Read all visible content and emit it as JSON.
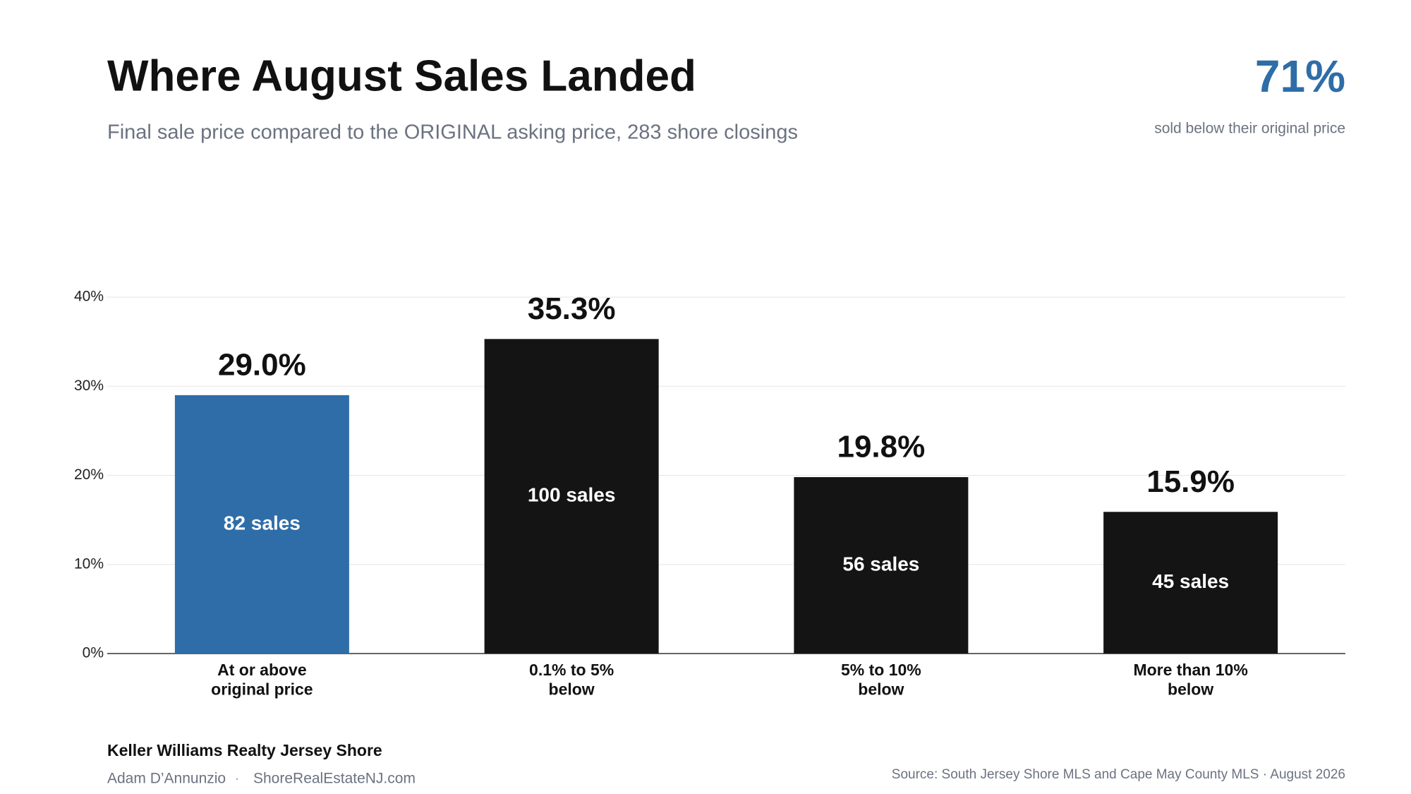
{
  "chart_data": {
    "type": "bar",
    "title": "Where August Sales Landed",
    "subtitle": "Final sale price compared to the ORIGINAL asking price, 283 shore closings",
    "highlight": {
      "value_label": "71%",
      "caption": "sold below their original price"
    },
    "categories": [
      "At or above\noriginal price",
      "0.1% to 5%\nbelow",
      "5% to 10%\nbelow",
      "More than 10%\nbelow"
    ],
    "values": [
      29.0,
      35.3,
      19.8,
      15.9
    ],
    "value_labels": [
      "29.0%",
      "35.3%",
      "19.8%",
      "15.9%"
    ],
    "bar_labels": [
      "82 sales",
      "100 sales",
      "56 sales",
      "45 sales"
    ],
    "colors": [
      "#2e6da8",
      "#141414",
      "#141414",
      "#141414"
    ],
    "ylim": [
      0,
      40
    ],
    "yticks": [
      {
        "value": 0,
        "label": "0%"
      },
      {
        "value": 10,
        "label": "10%"
      },
      {
        "value": 20,
        "label": "20%"
      },
      {
        "value": 30,
        "label": "30%"
      },
      {
        "value": 40,
        "label": "40%"
      }
    ],
    "grid": true,
    "footer": {
      "brand": "Keller Williams Realty Jersey Shore",
      "author": "Adam D’Annunzio",
      "separator": "·",
      "website": "ShoreRealEstateNJ.com",
      "source": "Source: South Jersey Shore MLS and Cape May County MLS · August 2026"
    }
  }
}
